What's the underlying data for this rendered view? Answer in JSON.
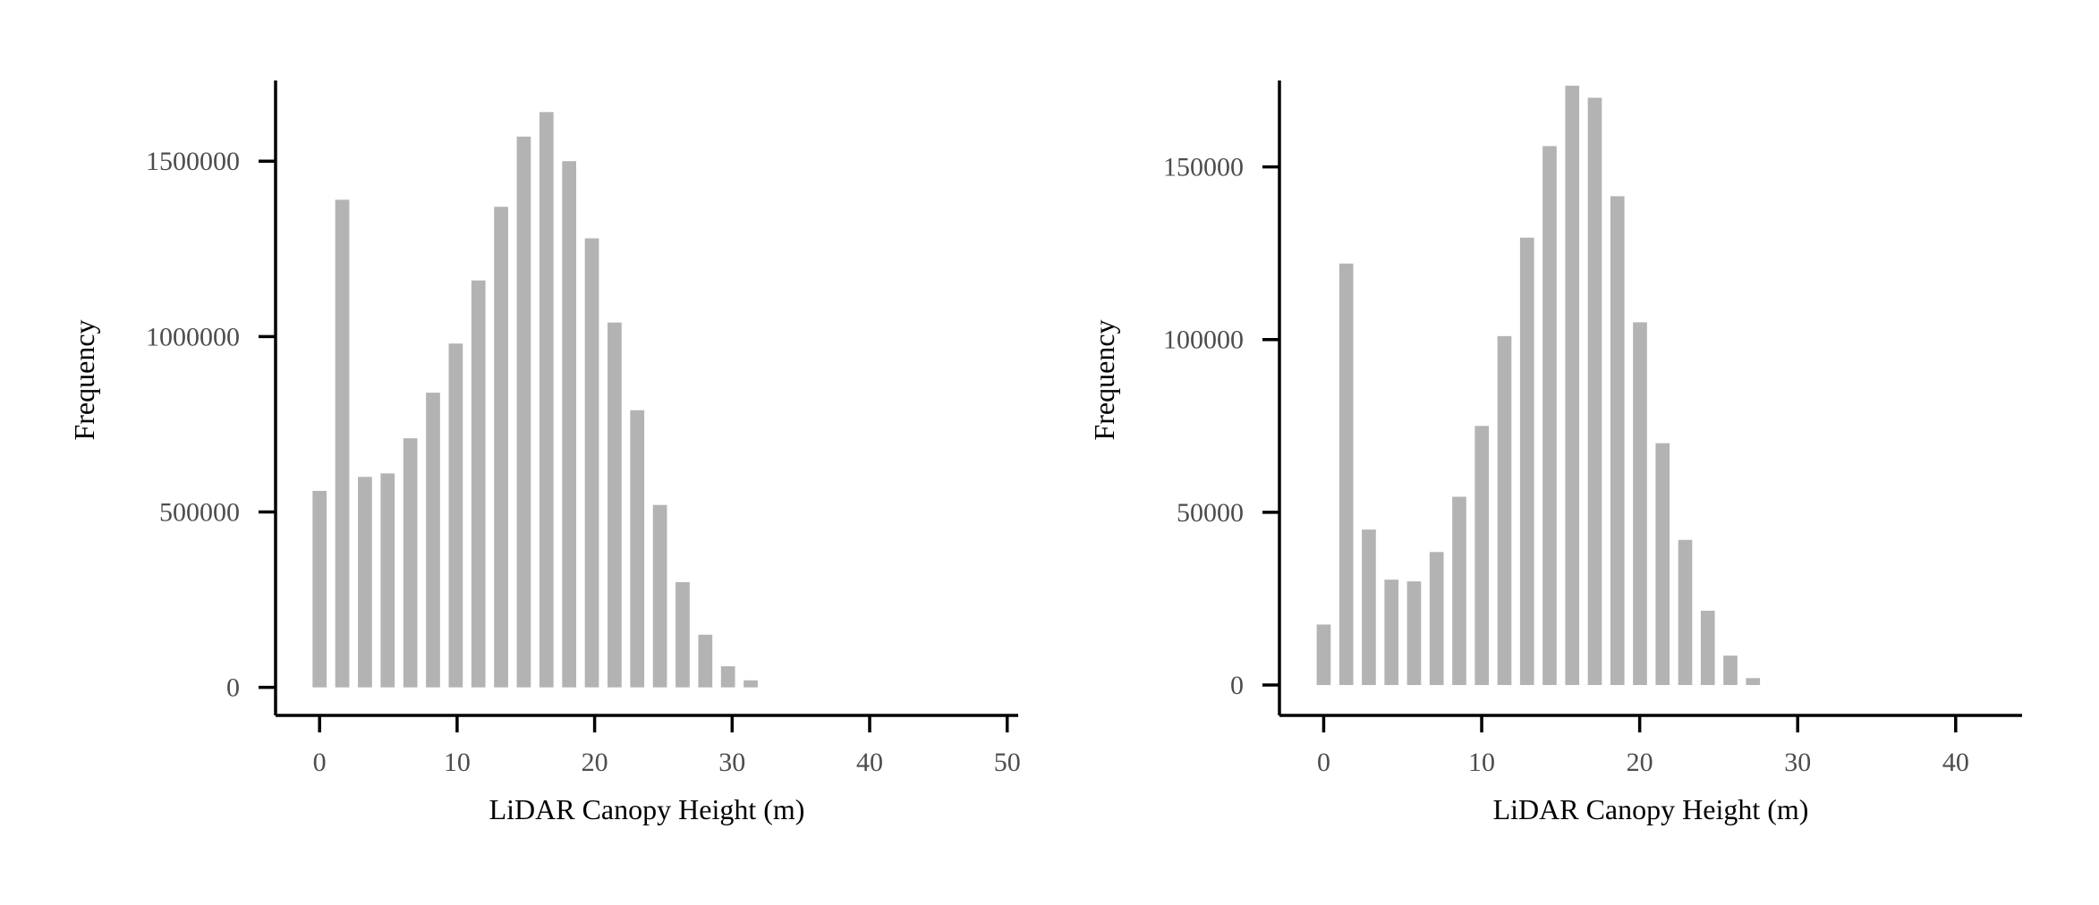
{
  "chart_data": [
    {
      "type": "bar",
      "title": "",
      "xlabel": "LiDAR Canopy Height (m)",
      "ylabel": "Frequency",
      "xlim": [
        -3.2,
        50.8
      ],
      "ylim": [
        -80000,
        1730000
      ],
      "x_ticks": [
        "0",
        "10",
        "20",
        "30",
        "40",
        "50"
      ],
      "y_ticks": [
        "0",
        "500000",
        "1000000",
        "1500000"
      ],
      "x": [
        0,
        1.65,
        3.3,
        4.95,
        6.6,
        8.25,
        9.9,
        11.55,
        13.2,
        14.85,
        16.5,
        18.15,
        19.8,
        21.45,
        23.1,
        24.75,
        26.4,
        28.05,
        29.7,
        31.35
      ],
      "values": [
        560000,
        1390000,
        600000,
        610000,
        710000,
        840000,
        980000,
        1160000,
        1370000,
        1570000,
        1640000,
        1500000,
        1280000,
        1040000,
        790000,
        520000,
        300000,
        150000,
        60000,
        20000
      ],
      "color": "#b3b3b3",
      "grid": false
    },
    {
      "type": "bar",
      "title": "",
      "xlabel": "LiDAR Canopy Height (m)",
      "ylabel": "Frequency",
      "xlim": [
        -2.8,
        44.2
      ],
      "ylim": [
        -8800,
        175000
      ],
      "x_ticks": [
        "0",
        "10",
        "20",
        "30",
        "40"
      ],
      "y_ticks": [
        "0",
        "50000",
        "100000",
        "150000"
      ],
      "x": [
        0,
        1.43,
        2.86,
        4.29,
        5.72,
        7.15,
        8.58,
        10.01,
        11.44,
        12.87,
        14.3,
        15.73,
        17.16,
        18.59,
        20.02,
        21.45,
        22.88,
        24.31,
        25.74,
        27.17
      ],
      "values": [
        17500,
        122000,
        45000,
        30500,
        30000,
        38500,
        54500,
        75000,
        101000,
        129500,
        156000,
        173500,
        170000,
        141500,
        105000,
        70000,
        42000,
        21500,
        8500,
        2000
      ],
      "color": "#b3b3b3",
      "grid": false
    }
  ]
}
